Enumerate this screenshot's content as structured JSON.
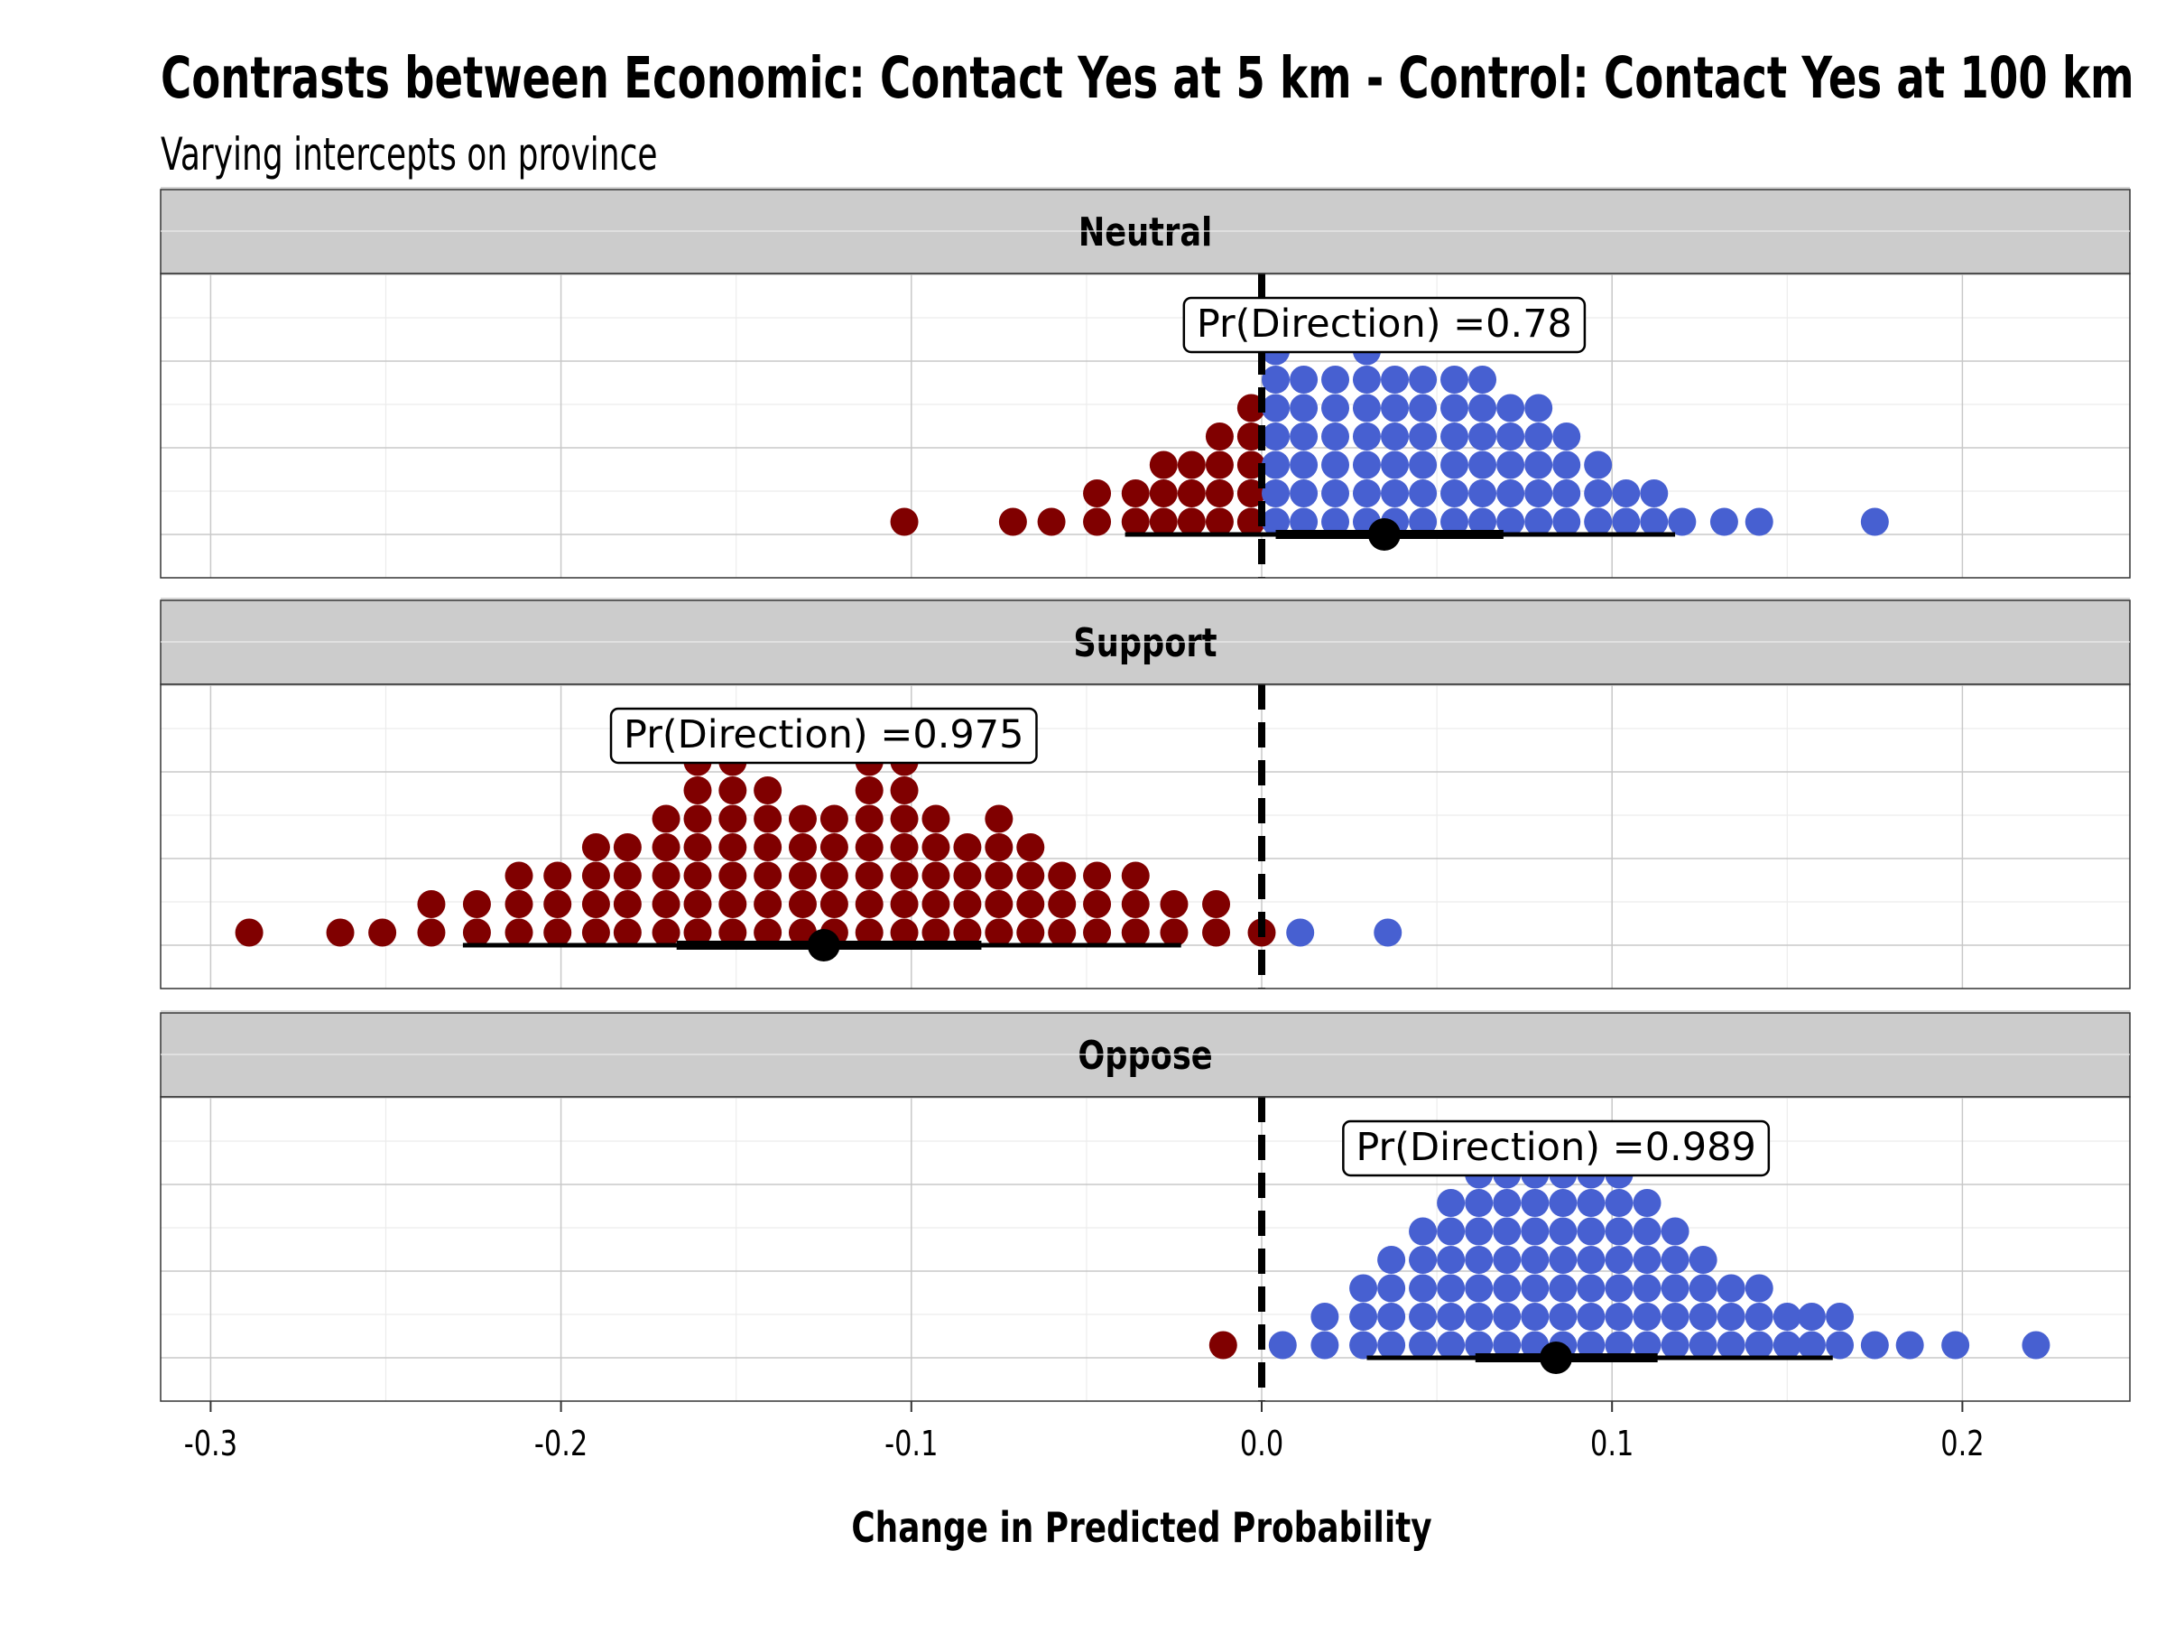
{
  "chart_data": {
    "type": "dotplot",
    "title": "Contrasts between Economic: Contact Yes at 5 km - Control: Contact Yes at 100 km",
    "subtitle": "Varying intercepts on province",
    "xlabel": "Change in Predicted Probability",
    "xlim": [
      -0.315,
      0.247
    ],
    "x_ticks": [
      -0.3,
      -0.2,
      -0.1,
      0.0,
      0.1,
      0.2
    ],
    "x_tick_labels": [
      "-0.3",
      "-0.2",
      "-0.1",
      "0.0",
      "0.1",
      "0.2"
    ],
    "reference_line_x": 0.0,
    "grid": true,
    "colors": {
      "negative": "#800000",
      "positive": "#4760D1",
      "summary": "#000000",
      "strip": "#CCCCCC"
    },
    "panels": [
      {
        "name": "Neutral",
        "annotation": "Pr(Direction) =0.78",
        "estimate": 0.035,
        "inner_interval": [
          0.004,
          0.069
        ],
        "outer_interval": [
          -0.039,
          0.118
        ],
        "columns": [
          [
            -0.102,
            1
          ],
          [
            -0.071,
            1
          ],
          [
            -0.06,
            1
          ],
          [
            -0.047,
            2
          ],
          [
            -0.036,
            2
          ],
          [
            -0.028,
            3
          ],
          [
            -0.02,
            3
          ],
          [
            -0.012,
            4
          ],
          [
            -0.003,
            5
          ],
          [
            0.004,
            7
          ],
          [
            0.012,
            6
          ],
          [
            0.021,
            6
          ],
          [
            0.03,
            7
          ],
          [
            0.038,
            6
          ],
          [
            0.046,
            6
          ],
          [
            0.055,
            6
          ],
          [
            0.063,
            6
          ],
          [
            0.071,
            5
          ],
          [
            0.079,
            5
          ],
          [
            0.087,
            4
          ],
          [
            0.096,
            3
          ],
          [
            0.104,
            2
          ],
          [
            0.112,
            2
          ],
          [
            0.12,
            1
          ],
          [
            0.132,
            1
          ],
          [
            0.142,
            1
          ],
          [
            0.175,
            1
          ]
        ],
        "column_colors": [
          "neg",
          "neg",
          "neg",
          "neg",
          "neg",
          "neg",
          "neg",
          "neg",
          "neg",
          "pos",
          "pos",
          "pos",
          "pos",
          "pos",
          "pos",
          "pos",
          "pos",
          "pos",
          "pos",
          "pos",
          "pos",
          "pos",
          "pos",
          "pos",
          "pos",
          "pos",
          "pos"
        ]
      },
      {
        "name": "Support",
        "annotation": "Pr(Direction) =0.975",
        "estimate": -0.125,
        "inner_interval": [
          -0.167,
          -0.08
        ],
        "outer_interval": [
          -0.228,
          -0.023
        ],
        "columns": [
          [
            -0.289,
            1
          ],
          [
            -0.263,
            1
          ],
          [
            -0.251,
            1
          ],
          [
            -0.237,
            2
          ],
          [
            -0.224,
            2
          ],
          [
            -0.212,
            3
          ],
          [
            -0.201,
            3
          ],
          [
            -0.19,
            4
          ],
          [
            -0.181,
            4
          ],
          [
            -0.17,
            5
          ],
          [
            -0.161,
            7
          ],
          [
            -0.151,
            7
          ],
          [
            -0.141,
            6
          ],
          [
            -0.131,
            5
          ],
          [
            -0.122,
            5
          ],
          [
            -0.112,
            7
          ],
          [
            -0.102,
            7
          ],
          [
            -0.093,
            5
          ],
          [
            -0.084,
            4
          ],
          [
            -0.075,
            5
          ],
          [
            -0.066,
            4
          ],
          [
            -0.057,
            3
          ],
          [
            -0.047,
            3
          ],
          [
            -0.036,
            3
          ],
          [
            -0.025,
            2
          ],
          [
            -0.013,
            2
          ],
          [
            0.0,
            1
          ],
          [
            0.011,
            1
          ],
          [
            0.036,
            1
          ]
        ],
        "column_colors": [
          "neg",
          "neg",
          "neg",
          "neg",
          "neg",
          "neg",
          "neg",
          "neg",
          "neg",
          "neg",
          "neg",
          "neg",
          "neg",
          "neg",
          "neg",
          "neg",
          "neg",
          "neg",
          "neg",
          "neg",
          "neg",
          "neg",
          "neg",
          "neg",
          "neg",
          "neg",
          "neg",
          "pos",
          "pos"
        ]
      },
      {
        "name": "Oppose",
        "annotation": "Pr(Direction) =0.989",
        "estimate": 0.084,
        "inner_interval": [
          0.061,
          0.113
        ],
        "outer_interval": [
          0.03,
          0.163
        ],
        "columns": [
          [
            -0.011,
            1
          ],
          [
            0.006,
            1
          ],
          [
            0.018,
            2
          ],
          [
            0.029,
            3
          ],
          [
            0.037,
            4
          ],
          [
            0.046,
            5
          ],
          [
            0.054,
            6
          ],
          [
            0.062,
            7
          ],
          [
            0.07,
            7
          ],
          [
            0.078,
            8
          ],
          [
            0.086,
            7
          ],
          [
            0.094,
            7
          ],
          [
            0.102,
            7
          ],
          [
            0.11,
            6
          ],
          [
            0.118,
            5
          ],
          [
            0.126,
            4
          ],
          [
            0.134,
            3
          ],
          [
            0.142,
            3
          ],
          [
            0.15,
            2
          ],
          [
            0.157,
            2
          ],
          [
            0.165,
            2
          ],
          [
            0.175,
            1
          ],
          [
            0.185,
            1
          ],
          [
            0.198,
            1
          ],
          [
            0.221,
            1
          ]
        ],
        "column_colors": [
          "neg",
          "pos",
          "pos",
          "pos",
          "pos",
          "pos",
          "pos",
          "pos",
          "pos",
          "pos",
          "pos",
          "pos",
          "pos",
          "pos",
          "pos",
          "pos",
          "pos",
          "pos",
          "pos",
          "pos",
          "pos",
          "pos",
          "pos",
          "pos",
          "pos"
        ]
      }
    ]
  }
}
